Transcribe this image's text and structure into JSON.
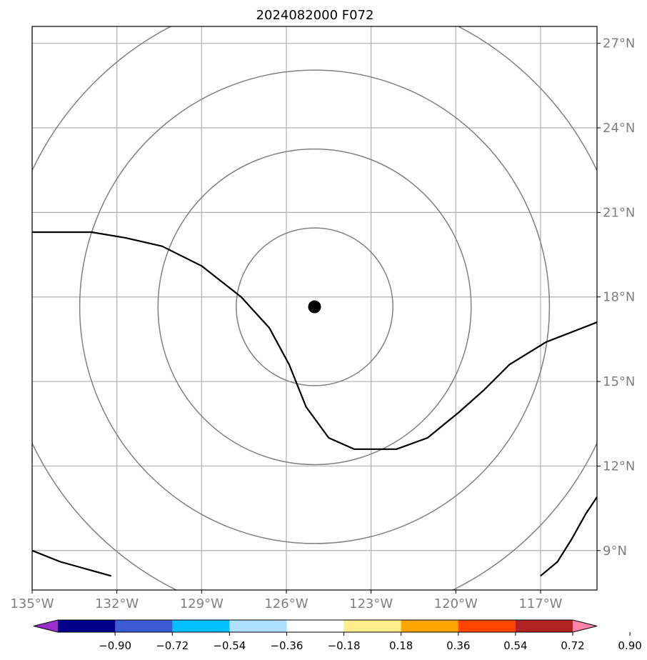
{
  "chart_data": {
    "type": "map",
    "title": "2024082000 F072",
    "longitude_ticks": [
      {
        "value": -135,
        "label": "135°W"
      },
      {
        "value": -132,
        "label": "132°W"
      },
      {
        "value": -129,
        "label": "129°W"
      },
      {
        "value": -126,
        "label": "126°W"
      },
      {
        "value": -123,
        "label": "123°W"
      },
      {
        "value": -120,
        "label": "120°W"
      },
      {
        "value": -117,
        "label": "117°W"
      }
    ],
    "latitude_ticks": [
      {
        "value": 9,
        "label": "9°N"
      },
      {
        "value": 12,
        "label": "12°N"
      },
      {
        "value": 15,
        "label": "15°N"
      },
      {
        "value": 18,
        "label": "18°N"
      },
      {
        "value": 21,
        "label": "21°N"
      },
      {
        "value": 24,
        "label": "24°N"
      },
      {
        "value": 27,
        "label": "27°N"
      }
    ],
    "lon_range": [
      -135,
      -115
    ],
    "lat_range": [
      7.6,
      27.6
    ],
    "center": {
      "lon": -125.0,
      "lat": 17.65
    },
    "range_rings_deg": [
      2.8,
      5.6,
      8.4,
      11.2
    ],
    "contour_lines": [
      {
        "name": "main-contour",
        "points": [
          [
            -135,
            20.3
          ],
          [
            -132.9,
            20.3
          ],
          [
            -131.7,
            20.1
          ],
          [
            -130.4,
            19.8
          ],
          [
            -129,
            19.1
          ],
          [
            -127.6,
            18.0
          ],
          [
            -126.6,
            16.9
          ],
          [
            -125.9,
            15.6
          ],
          [
            -125.3,
            14.1
          ],
          [
            -124.5,
            13.0
          ],
          [
            -123.6,
            12.6
          ],
          [
            -122.1,
            12.6
          ],
          [
            -121,
            13.0
          ],
          [
            -119.9,
            13.9
          ],
          [
            -119,
            14.7
          ],
          [
            -118.1,
            15.6
          ],
          [
            -116.8,
            16.4
          ],
          [
            -115,
            17.1
          ]
        ]
      },
      {
        "name": "sw-contour",
        "points": [
          [
            -135,
            9.0
          ],
          [
            -134,
            8.6
          ],
          [
            -132.2,
            8.1
          ]
        ]
      },
      {
        "name": "se-contour",
        "points": [
          [
            -117,
            8.1
          ],
          [
            -116.4,
            8.6
          ],
          [
            -115.9,
            9.4
          ],
          [
            -115.4,
            10.3
          ],
          [
            -115,
            10.9
          ]
        ]
      }
    ],
    "colorbar": {
      "colors": [
        "#9932cc",
        "#00008b",
        "#3c5bd2",
        "#00bfff",
        "#b0e0ff",
        "#ffffff",
        "#ffec8b",
        "#ffa500",
        "#ff4500",
        "#b22222",
        "#ff82ab"
      ],
      "tick_values": [
        -0.9,
        -0.72,
        -0.54,
        -0.36,
        -0.18,
        0.18,
        0.36,
        0.54,
        0.72,
        0.9
      ],
      "tick_labels": [
        "−0.90",
        "−0.72",
        "−0.54",
        "−0.36",
        "−0.18",
        "0.18",
        "0.36",
        "0.54",
        "0.72",
        "0.90"
      ],
      "extend": "both"
    },
    "styles": {
      "grid_color": "#b0b0b0",
      "ring_color": "#808080",
      "contour_color": "#000000",
      "tick_color": "#7f7f7f"
    }
  }
}
